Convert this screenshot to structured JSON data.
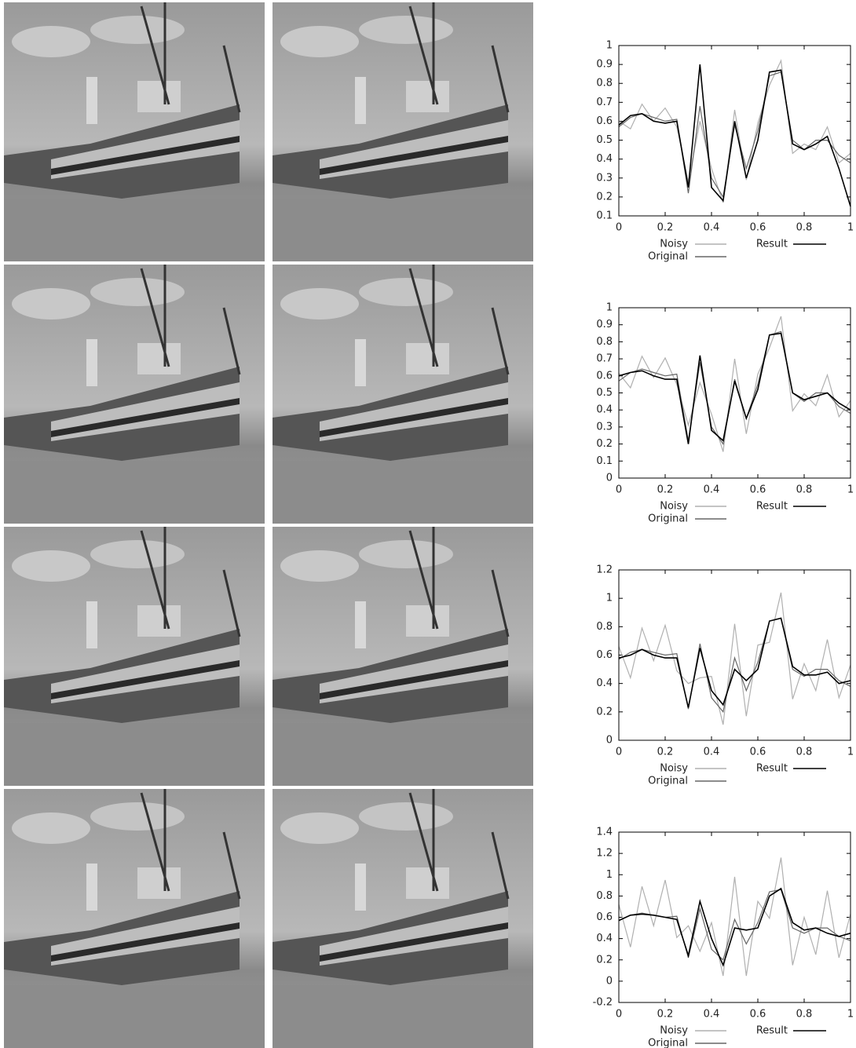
{
  "chart_data": [
    {
      "type": "line",
      "legend": "bottom",
      "xlim": [
        0,
        1
      ],
      "xticks": [
        0,
        0.2,
        0.4,
        0.6,
        0.8,
        1
      ],
      "ylim": [
        0.1,
        1
      ],
      "yticks": [
        0.1,
        0.2,
        0.3,
        0.4,
        0.5,
        0.6,
        0.7,
        0.8,
        0.9,
        1
      ],
      "x": [
        0,
        0.05,
        0.1,
        0.15,
        0.2,
        0.25,
        0.3,
        0.35,
        0.4,
        0.45,
        0.5,
        0.55,
        0.6,
        0.65,
        0.7,
        0.75,
        0.8,
        0.85,
        0.9,
        0.95,
        1
      ],
      "series": [
        {
          "name": "Noisy",
          "color": "#b0b0b0",
          "values": [
            0.6,
            0.56,
            0.69,
            0.6,
            0.67,
            0.57,
            0.28,
            0.6,
            0.35,
            0.17,
            0.66,
            0.29,
            0.59,
            0.79,
            0.92,
            0.43,
            0.48,
            0.45,
            0.57,
            0.38,
            0.43
          ]
        },
        {
          "name": "Original",
          "color": "#666666",
          "values": [
            0.57,
            0.62,
            0.64,
            0.62,
            0.6,
            0.61,
            0.22,
            0.68,
            0.3,
            0.2,
            0.58,
            0.35,
            0.55,
            0.84,
            0.86,
            0.5,
            0.45,
            0.5,
            0.5,
            0.42,
            0.38
          ]
        },
        {
          "name": "Result",
          "color": "#000000",
          "values": [
            0.58,
            0.63,
            0.64,
            0.6,
            0.59,
            0.6,
            0.25,
            0.9,
            0.25,
            0.18,
            0.6,
            0.3,
            0.5,
            0.86,
            0.87,
            0.48,
            0.45,
            0.48,
            0.52,
            0.35,
            0.15
          ]
        }
      ]
    },
    {
      "type": "line",
      "legend": "bottom",
      "xlim": [
        0,
        1
      ],
      "xticks": [
        0,
        0.2,
        0.4,
        0.6,
        0.8,
        1
      ],
      "ylim": [
        0,
        1
      ],
      "yticks": [
        0,
        0.1,
        0.2,
        0.3,
        0.4,
        0.5,
        0.6,
        0.7,
        0.8,
        0.9,
        1
      ],
      "x": [
        0,
        0.05,
        0.1,
        0.15,
        0.2,
        0.25,
        0.3,
        0.35,
        0.4,
        0.45,
        0.5,
        0.55,
        0.6,
        0.65,
        0.7,
        0.75,
        0.8,
        0.85,
        0.9,
        0.95,
        1
      ],
      "series": [
        {
          "name": "Noisy",
          "color": "#b0b0b0",
          "values": [
            0.615,
            0.53,
            0.715,
            0.59,
            0.705,
            0.55,
            0.31,
            0.56,
            0.375,
            0.155,
            0.7,
            0.26,
            0.61,
            0.765,
            0.95,
            0.395,
            0.495,
            0.425,
            0.605,
            0.36,
            0.455
          ]
        },
        {
          "name": "Original",
          "color": "#666666",
          "values": [
            0.57,
            0.62,
            0.64,
            0.62,
            0.6,
            0.61,
            0.22,
            0.68,
            0.3,
            0.2,
            0.58,
            0.35,
            0.55,
            0.84,
            0.86,
            0.5,
            0.45,
            0.5,
            0.5,
            0.42,
            0.38
          ]
        },
        {
          "name": "Result",
          "color": "#000000",
          "values": [
            0.6,
            0.62,
            0.63,
            0.6,
            0.58,
            0.58,
            0.2,
            0.72,
            0.28,
            0.22,
            0.57,
            0.35,
            0.52,
            0.84,
            0.85,
            0.5,
            0.46,
            0.48,
            0.5,
            0.44,
            0.4
          ]
        }
      ]
    },
    {
      "type": "line",
      "legend": "bottom",
      "xlim": [
        0,
        1
      ],
      "xticks": [
        0,
        0.2,
        0.4,
        0.6,
        0.8,
        1
      ],
      "ylim": [
        0,
        1.2
      ],
      "yticks": [
        0,
        0.2,
        0.4,
        0.6,
        0.8,
        1,
        1.2
      ],
      "x": [
        0,
        0.05,
        0.1,
        0.15,
        0.2,
        0.25,
        0.3,
        0.35,
        0.4,
        0.45,
        0.5,
        0.55,
        0.6,
        0.65,
        0.7,
        0.75,
        0.8,
        0.85,
        0.9,
        0.95,
        1
      ],
      "series": [
        {
          "name": "Noisy",
          "color": "#b0b0b0",
          "values": [
            0.66,
            0.44,
            0.79,
            0.56,
            0.81,
            0.49,
            0.4,
            0.44,
            0.45,
            0.11,
            0.82,
            0.17,
            0.67,
            0.69,
            1.04,
            0.29,
            0.54,
            0.35,
            0.71,
            0.3,
            0.53
          ]
        },
        {
          "name": "Original",
          "color": "#666666",
          "values": [
            0.57,
            0.62,
            0.64,
            0.62,
            0.6,
            0.61,
            0.22,
            0.68,
            0.3,
            0.2,
            0.58,
            0.35,
            0.55,
            0.84,
            0.86,
            0.5,
            0.45,
            0.5,
            0.5,
            0.42,
            0.38
          ]
        },
        {
          "name": "Result",
          "color": "#000000",
          "values": [
            0.58,
            0.6,
            0.64,
            0.6,
            0.58,
            0.58,
            0.23,
            0.65,
            0.35,
            0.25,
            0.5,
            0.42,
            0.5,
            0.84,
            0.86,
            0.52,
            0.46,
            0.46,
            0.48,
            0.4,
            0.42
          ]
        }
      ]
    },
    {
      "type": "line",
      "legend": "bottom",
      "xlim": [
        0,
        1
      ],
      "xticks": [
        0,
        0.2,
        0.4,
        0.6,
        0.8,
        1
      ],
      "ylim": [
        -0.2,
        1.4
      ],
      "yticks": [
        -0.2,
        0,
        0.2,
        0.4,
        0.6,
        0.8,
        1,
        1.2,
        1.4
      ],
      "x": [
        0,
        0.05,
        0.1,
        0.15,
        0.2,
        0.25,
        0.3,
        0.35,
        0.4,
        0.45,
        0.5,
        0.55,
        0.6,
        0.65,
        0.7,
        0.75,
        0.8,
        0.85,
        0.9,
        0.95,
        1
      ],
      "series": [
        {
          "name": "Noisy",
          "color": "#b0b0b0",
          "values": [
            0.72,
            0.32,
            0.89,
            0.52,
            0.95,
            0.41,
            0.52,
            0.28,
            0.55,
            0.05,
            0.98,
            0.05,
            0.75,
            0.59,
            1.16,
            0.15,
            0.6,
            0.25,
            0.85,
            0.22,
            0.63
          ]
        },
        {
          "name": "Original",
          "color": "#666666",
          "values": [
            0.57,
            0.62,
            0.64,
            0.62,
            0.6,
            0.61,
            0.22,
            0.68,
            0.3,
            0.2,
            0.58,
            0.35,
            0.55,
            0.84,
            0.86,
            0.5,
            0.45,
            0.5,
            0.5,
            0.42,
            0.38
          ]
        },
        {
          "name": "Result",
          "color": "#000000",
          "values": [
            0.57,
            0.62,
            0.63,
            0.62,
            0.6,
            0.58,
            0.24,
            0.75,
            0.4,
            0.15,
            0.5,
            0.48,
            0.5,
            0.8,
            0.87,
            0.55,
            0.48,
            0.5,
            0.45,
            0.42,
            0.45
          ]
        }
      ]
    }
  ]
}
